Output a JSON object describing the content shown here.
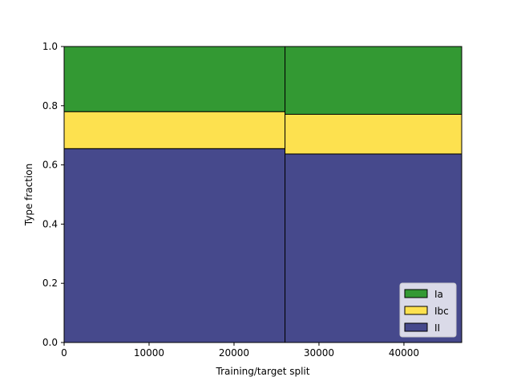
{
  "chart_data": {
    "type": "bar",
    "title": "",
    "xlabel": "Training/target split",
    "ylabel": "Type fraction",
    "xlim": [
      0,
      46800
    ],
    "ylim": [
      0,
      1.0
    ],
    "xticks": [
      0,
      10000,
      20000,
      30000,
      40000
    ],
    "xtick_labels": [
      "0",
      "10000",
      "20000",
      "30000",
      "40000"
    ],
    "yticks": [
      0.0,
      0.2,
      0.4,
      0.6,
      0.8,
      1.0
    ],
    "ytick_labels": [
      "0.0",
      "0.2",
      "0.4",
      "0.6",
      "0.8",
      "1.0"
    ],
    "grid": false,
    "legend_position": "bottom-right",
    "stacked": true,
    "bins": [
      {
        "x_start": 0,
        "x_end": 26000
      },
      {
        "x_start": 26000,
        "x_end": 46800
      }
    ],
    "series": [
      {
        "name": "II",
        "color": "#46498c",
        "values": [
          0.655,
          0.637
        ]
      },
      {
        "name": "Ibc",
        "color": "#fde14f",
        "values": [
          0.125,
          0.134
        ]
      },
      {
        "name": "Ia",
        "color": "#339933",
        "values": [
          0.22,
          0.229
        ]
      }
    ],
    "legend_order": [
      "Ia",
      "Ibc",
      "II"
    ]
  }
}
